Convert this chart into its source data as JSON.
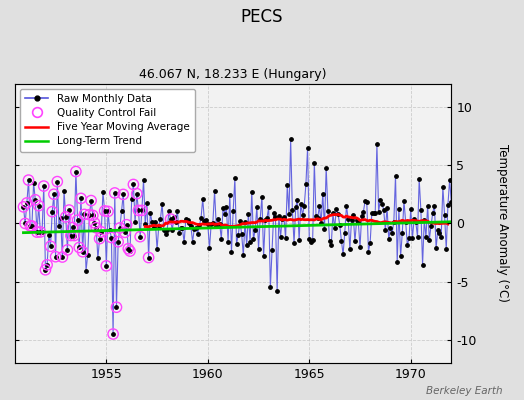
{
  "title": "PECS",
  "subtitle": "46.067 N, 18.233 E (Hungary)",
  "ylabel": "Temperature Anomaly (°C)",
  "watermark": "Berkeley Earth",
  "xlim": [
    1950.5,
    1972.0
  ],
  "ylim": [
    -12,
    12
  ],
  "yticks": [
    -10,
    -5,
    0,
    5,
    10
  ],
  "xticks": [
    1955,
    1960,
    1965,
    1970
  ],
  "bg_color": "#e0e0e0",
  "plot_bg_color": "#f2f2f2",
  "raw_color": "#5555dd",
  "raw_marker_color": "#000000",
  "qc_color": "#ff44ff",
  "ma_color": "#ff0000",
  "trend_color": "#00cc00",
  "seed": 42,
  "n_months": 258,
  "start_year": 1950.917
}
